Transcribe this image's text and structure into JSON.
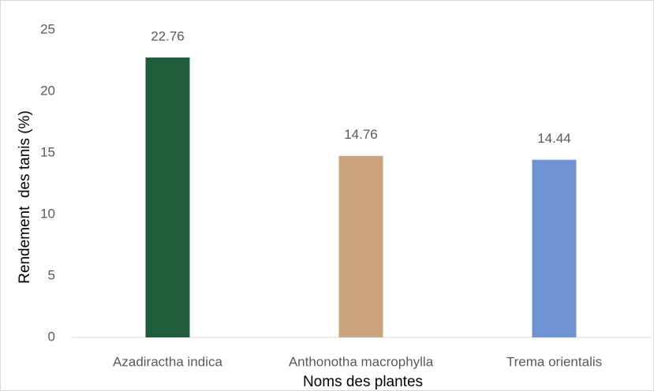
{
  "chart_data": {
    "type": "bar",
    "x_label": "Noms des plantes",
    "y_label": "Rendement  des tanis (%)",
    "categories": [
      "Azadiractha indica",
      "Anthonotha macrophylla",
      "Trema orientalis"
    ],
    "values": [
      22.76,
      14.76,
      14.44
    ],
    "colors": [
      "#1f5c39",
      "#c9a47c",
      "#6f93d3"
    ],
    "ylim": [
      0,
      25
    ],
    "yticks": [
      0,
      5,
      10,
      15,
      20,
      25
    ],
    "grid": false
  }
}
